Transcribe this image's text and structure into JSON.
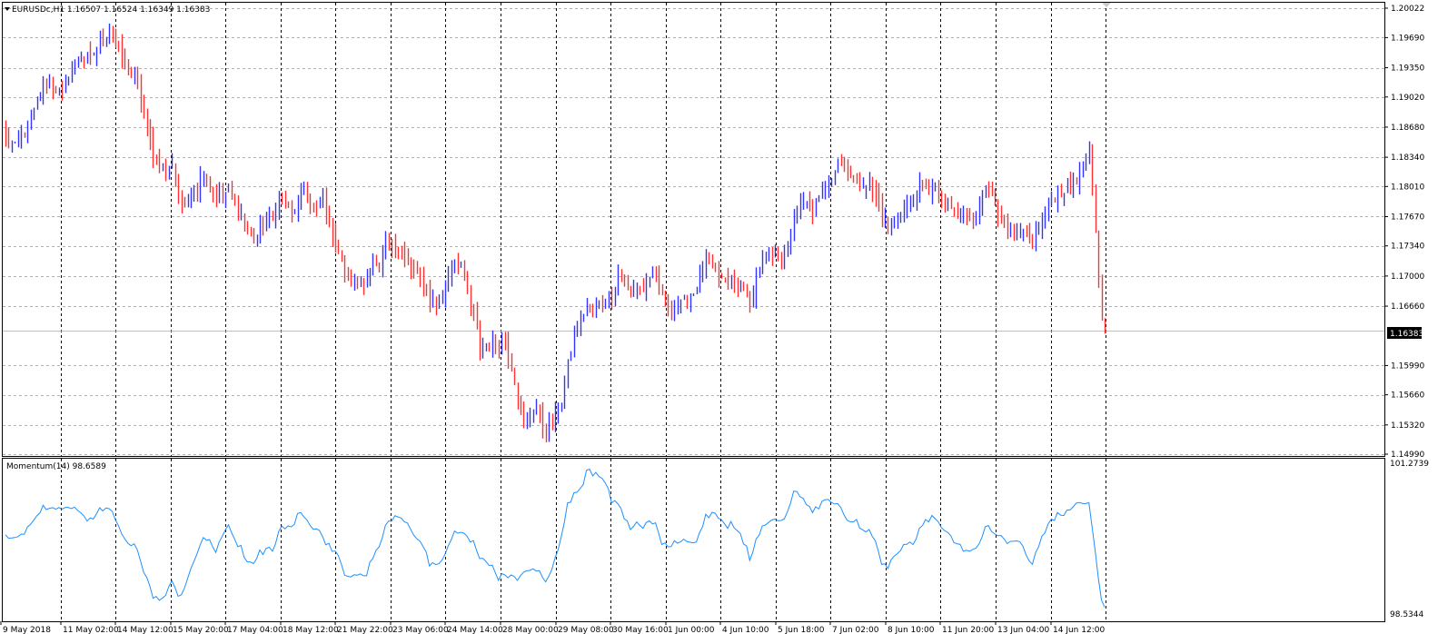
{
  "main_panel": {
    "label": "EURUSDc,H1  1.16507 1.16524 1.16349 1.16383",
    "current_price_label": "1.16383"
  },
  "momentum_panel": {
    "label": "Momentum(14) 98.6589"
  },
  "colors": {
    "up": "#3333ff",
    "down": "#ff3333",
    "momentum_line": "#1e90ff",
    "grid": "#000000",
    "current_price_line": "#c0c0c0",
    "price_tag_bg": "#000000",
    "price_tag_text": "#ffffff"
  },
  "chart_data": [
    {
      "type": "candlestick",
      "symbol": "EURUSDc",
      "timeframe": "H1",
      "ylim": [
        1.1499,
        1.20022
      ],
      "y_ticks": [
        "1.20022",
        "1.19690",
        "1.19350",
        "1.19020",
        "1.18680",
        "1.18340",
        "1.18010",
        "1.17670",
        "1.17340",
        "1.17000",
        "1.16660",
        "1.16383",
        "1.15990",
        "1.15660",
        "1.15320",
        "1.14990"
      ],
      "x_ticks": [
        "9 May 2018",
        "11 May 02:00",
        "14 May 12:00",
        "15 May 20:00",
        "17 May 04:00",
        "18 May 12:00",
        "21 May 22:00",
        "23 May 06:00",
        "24 May 14:00",
        "28 May 00:00",
        "29 May 08:00",
        "30 May 16:00",
        "1 Jun 00:00",
        "4 Jun 10:00",
        "5 Jun 18:00",
        "7 Jun 02:00",
        "8 Jun 10:00",
        "11 Jun 20:00",
        "13 Jun 04:00",
        "14 Jun 12:00"
      ],
      "last_ohlc": {
        "open": 1.16507,
        "high": 1.16524,
        "low": 1.16349,
        "close": 1.16383
      },
      "close_path": [
        [
          0,
          1.1855
        ],
        [
          3,
          1.1845
        ],
        [
          6,
          1.1862
        ],
        [
          9,
          1.1885
        ],
        [
          12,
          1.1918
        ],
        [
          15,
          1.1912
        ],
        [
          18,
          1.1905
        ],
        [
          21,
          1.1932
        ],
        [
          24,
          1.195
        ],
        [
          27,
          1.1945
        ],
        [
          30,
          1.1962
        ],
        [
          33,
          1.1978
        ],
        [
          35,
          1.1965
        ],
        [
          38,
          1.1935
        ],
        [
          41,
          1.1925
        ],
        [
          43,
          1.19
        ],
        [
          45,
          1.1865
        ],
        [
          47,
          1.184
        ],
        [
          49,
          1.1825
        ],
        [
          51,
          1.1812
        ],
        [
          53,
          1.183
        ],
        [
          55,
          1.1795
        ],
        [
          57,
          1.1775
        ],
        [
          59,
          1.18
        ],
        [
          61,
          1.1798
        ],
        [
          63,
          1.182
        ],
        [
          65,
          1.1803
        ],
        [
          67,
          1.1792
        ],
        [
          69,
          1.179
        ],
        [
          71,
          1.1798
        ],
        [
          73,
          1.1782
        ],
        [
          75,
          1.177
        ],
        [
          77,
          1.1755
        ],
        [
          79,
          1.174
        ],
        [
          81,
          1.175
        ],
        [
          83,
          1.176
        ],
        [
          85,
          1.1765
        ],
        [
          87,
          1.179
        ],
        [
          89,
          1.1785
        ],
        [
          91,
          1.177
        ],
        [
          93,
          1.178
        ],
        [
          95,
          1.1795
        ],
        [
          97,
          1.178
        ],
        [
          99,
          1.1775
        ],
        [
          101,
          1.1785
        ],
        [
          103,
          1.176
        ],
        [
          105,
          1.174
        ],
        [
          107,
          1.1715
        ],
        [
          109,
          1.17
        ],
        [
          111,
          1.169
        ],
        [
          113,
          1.1695
        ],
        [
          115,
          1.17
        ],
        [
          117,
          1.171
        ],
        [
          119,
          1.1705
        ],
        [
          121,
          1.1735
        ],
        [
          123,
          1.174
        ],
        [
          125,
          1.1732
        ],
        [
          127,
          1.172
        ],
        [
          129,
          1.171
        ],
        [
          131,
          1.17
        ],
        [
          133,
          1.169
        ],
        [
          135,
          1.1675
        ],
        [
          137,
          1.167
        ],
        [
          139,
          1.1675
        ],
        [
          141,
          1.17
        ],
        [
          143,
          1.172
        ],
        [
          145,
          1.171
        ],
        [
          147,
          1.168
        ],
        [
          149,
          1.1655
        ],
        [
          151,
          1.162
        ],
        [
          153,
          1.162
        ],
        [
          155,
          1.1628
        ],
        [
          157,
          1.1625
        ],
        [
          159,
          1.1625
        ],
        [
          161,
          1.16
        ],
        [
          163,
          1.1565
        ],
        [
          165,
          1.1535
        ],
        [
          167,
          1.1545
        ],
        [
          169,
          1.1555
        ],
        [
          171,
          1.153
        ],
        [
          173,
          1.153
        ],
        [
          175,
          1.154
        ],
        [
          177,
          1.156
        ],
        [
          179,
          1.16
        ],
        [
          181,
          1.163
        ],
        [
          183,
          1.165
        ],
        [
          185,
          1.1665
        ],
        [
          187,
          1.166
        ],
        [
          189,
          1.1668
        ],
        [
          191,
          1.1672
        ],
        [
          193,
          1.168
        ],
        [
          195,
          1.17
        ],
        [
          197,
          1.169
        ],
        [
          199,
          1.1675
        ],
        [
          201,
          1.169
        ],
        [
          203,
          1.1685
        ],
        [
          205,
          1.17
        ],
        [
          207,
          1.1695
        ],
        [
          209,
          1.168
        ],
        [
          211,
          1.1665
        ],
        [
          213,
          1.1665
        ],
        [
          215,
          1.1668
        ],
        [
          217,
          1.1675
        ],
        [
          219,
          1.1682
        ],
        [
          221,
          1.17
        ],
        [
          223,
          1.1718
        ],
        [
          225,
          1.1705
        ],
        [
          227,
          1.17
        ],
        [
          229,
          1.1692
        ],
        [
          231,
          1.1695
        ],
        [
          233,
          1.1688
        ],
        [
          235,
          1.169
        ],
        [
          237,
          1.1665
        ],
        [
          239,
          1.17
        ],
        [
          241,
          1.1715
        ],
        [
          243,
          1.1718
        ],
        [
          245,
          1.1728
        ],
        [
          247,
          1.1725
        ],
        [
          249,
          1.173
        ],
        [
          251,
          1.1765
        ],
        [
          253,
          1.178
        ],
        [
          255,
          1.1782
        ],
        [
          257,
          1.1775
        ],
        [
          259,
          1.1785
        ],
        [
          261,
          1.18
        ],
        [
          263,
          1.181
        ],
        [
          265,
          1.1832
        ],
        [
          267,
          1.1828
        ],
        [
          269,
          1.1815
        ],
        [
          271,
          1.18
        ],
        [
          273,
          1.1805
        ],
        [
          275,
          1.1805
        ],
        [
          277,
          1.179
        ],
        [
          279,
          1.177
        ],
        [
          281,
          1.1755
        ],
        [
          283,
          1.1765
        ],
        [
          285,
          1.1775
        ],
        [
          287,
          1.1778
        ],
        [
          289,
          1.1788
        ],
        [
          291,
          1.18
        ],
        [
          293,
          1.1795
        ],
        [
          295,
          1.18
        ],
        [
          297,
          1.179
        ],
        [
          299,
          1.178
        ],
        [
          301,
          1.1775
        ],
        [
          303,
          1.1765
        ],
        [
          305,
          1.177
        ],
        [
          307,
          1.176
        ],
        [
          309,
          1.177
        ],
        [
          311,
          1.1795
        ],
        [
          313,
          1.18
        ],
        [
          315,
          1.1785
        ],
        [
          317,
          1.176
        ],
        [
          319,
          1.175
        ],
        [
          321,
          1.1745
        ],
        [
          323,
          1.1748
        ],
        [
          325,
          1.1745
        ],
        [
          327,
          1.174
        ],
        [
          329,
          1.1755
        ],
        [
          331,
          1.177
        ],
        [
          333,
          1.1785
        ],
        [
          335,
          1.1795
        ],
        [
          337,
          1.1798
        ],
        [
          339,
          1.1802
        ],
        [
          341,
          1.181
        ],
        [
          343,
          1.1822
        ],
        [
          345,
          1.184
        ],
        [
          346,
          1.18
        ],
        [
          347,
          1.175
        ],
        [
          348,
          1.169
        ],
        [
          349,
          1.1655
        ],
        [
          350,
          1.1638
        ]
      ]
    },
    {
      "type": "line",
      "indicator": "Momentum",
      "period": 14,
      "last_value": 98.6589,
      "ylim": [
        98.5344,
        101.2739
      ],
      "y_ticks": [
        "101.2739",
        "98.5344"
      ],
      "series": [
        {
          "name": "Momentum(14)"
        }
      ]
    }
  ]
}
